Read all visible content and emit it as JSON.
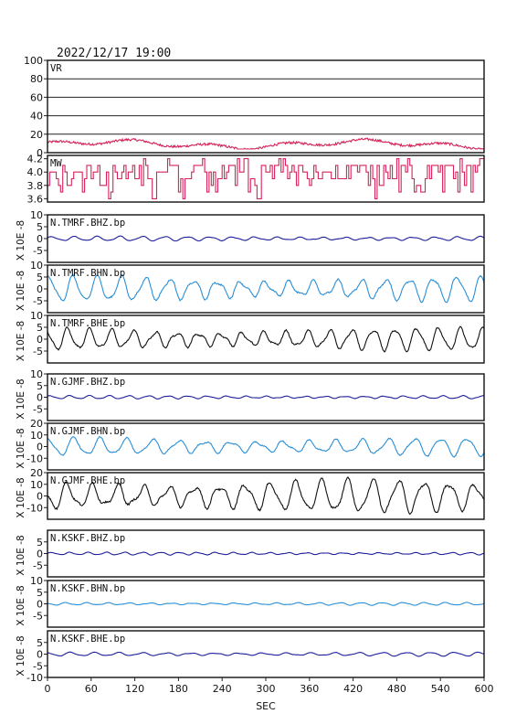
{
  "chart_data": {
    "type": "line",
    "title": "2022/12/17  19:00",
    "xlabel": "SEC",
    "xlim": [
      0,
      600
    ],
    "x_ticks": [
      "0",
      "60",
      "120",
      "180",
      "240",
      "300",
      "360",
      "420",
      "480",
      "540",
      "600"
    ],
    "panels": [
      {
        "label": "VR",
        "ylim": [
          0,
          100
        ],
        "ticks": [
          "0",
          "20",
          "40",
          "60",
          "80",
          "100"
        ],
        "grid": true,
        "color": "#d4245a",
        "ylabel": "",
        "kind": "vr"
      },
      {
        "label": "MW",
        "ylim": [
          3.55,
          4.25
        ],
        "ticks": [
          "3.6",
          "3.8",
          "4.0",
          "4.2"
        ],
        "grid": false,
        "color": "#d4245a",
        "ylabel": "",
        "kind": "mw"
      },
      {
        "label": "N.TMRF.BHZ.bp",
        "ylim": [
          -10,
          10
        ],
        "ticks": [
          "-5",
          "0",
          "5",
          "10"
        ],
        "grid": false,
        "color": "#1f1f99",
        "ylabel": "X 10E -8",
        "kind": "wave",
        "amp": 0.8,
        "period": 31,
        "phase": 0.3
      },
      {
        "label": "N.TMRF.BHN.bp",
        "ylim": [
          -10,
          10
        ],
        "ticks": [
          "-5",
          "0",
          "5",
          "10"
        ],
        "grid": false,
        "color": "#2a8fd6",
        "ylabel": "X 10E -8",
        "kind": "wave",
        "amp": 4.5,
        "period": 33,
        "phase": 1.1
      },
      {
        "label": "N.TMRF.BHE.bp",
        "ylim": [
          -10,
          10
        ],
        "ticks": [
          "-5",
          "0",
          "5",
          "10"
        ],
        "grid": false,
        "color": "#111111",
        "ylabel": "X 10E -8",
        "kind": "wave",
        "amp": 4.0,
        "period": 30,
        "phase": 2.0
      },
      {
        "label": "N.GJMF.BHZ.bp",
        "ylim": [
          -10,
          10
        ],
        "ticks": [
          "-5",
          "0",
          "5",
          "10"
        ],
        "grid": false,
        "color": "#1f1f99",
        "ylabel": "X 10E -8",
        "kind": "wave",
        "amp": 0.6,
        "period": 27,
        "phase": 0.7
      },
      {
        "label": "N.GJMF.BHN.bp",
        "ylim": [
          -20,
          20
        ],
        "ticks": [
          "-10",
          "0",
          "10",
          "20"
        ],
        "grid": false,
        "color": "#2a8fd6",
        "ylabel": "X 10E -8",
        "kind": "wave",
        "amp": 6.5,
        "period": 36,
        "phase": 1.5
      },
      {
        "label": "N.GJMF.BHE.bp",
        "ylim": [
          -20,
          20
        ],
        "ticks": [
          "-10",
          "0",
          "10",
          "20"
        ],
        "grid": false,
        "color": "#111111",
        "ylabel": "X 10E -8",
        "kind": "wave",
        "amp": 12,
        "period": 35,
        "phase": 3.0
      },
      {
        "label": "N.KSKF.BHZ.bp",
        "ylim": [
          -10,
          10
        ],
        "ticks": [
          "-5",
          "0",
          "5"
        ],
        "grid": false,
        "color": "#1f1f99",
        "ylabel": "X 10E -8",
        "kind": "wave",
        "amp": 0.5,
        "period": 25,
        "phase": 0.1
      },
      {
        "label": "N.KSKF.BHN.bp",
        "ylim": [
          -10,
          10
        ],
        "ticks": [
          "-5",
          "0",
          "5",
          "10"
        ],
        "grid": false,
        "color": "#2a8fd6",
        "ylabel": "X 10E -8",
        "kind": "wave",
        "amp": 0.5,
        "period": 29,
        "phase": 2.4
      },
      {
        "label": "N.KSKF.BHE.bp",
        "ylim": [
          -10,
          10
        ],
        "ticks": [
          "-10",
          "-5",
          "0",
          "5"
        ],
        "grid": false,
        "color": "#1f1f99",
        "ylabel": "X 10E -8",
        "kind": "wave",
        "amp": 0.7,
        "period": 33,
        "phase": 1.8
      }
    ]
  }
}
